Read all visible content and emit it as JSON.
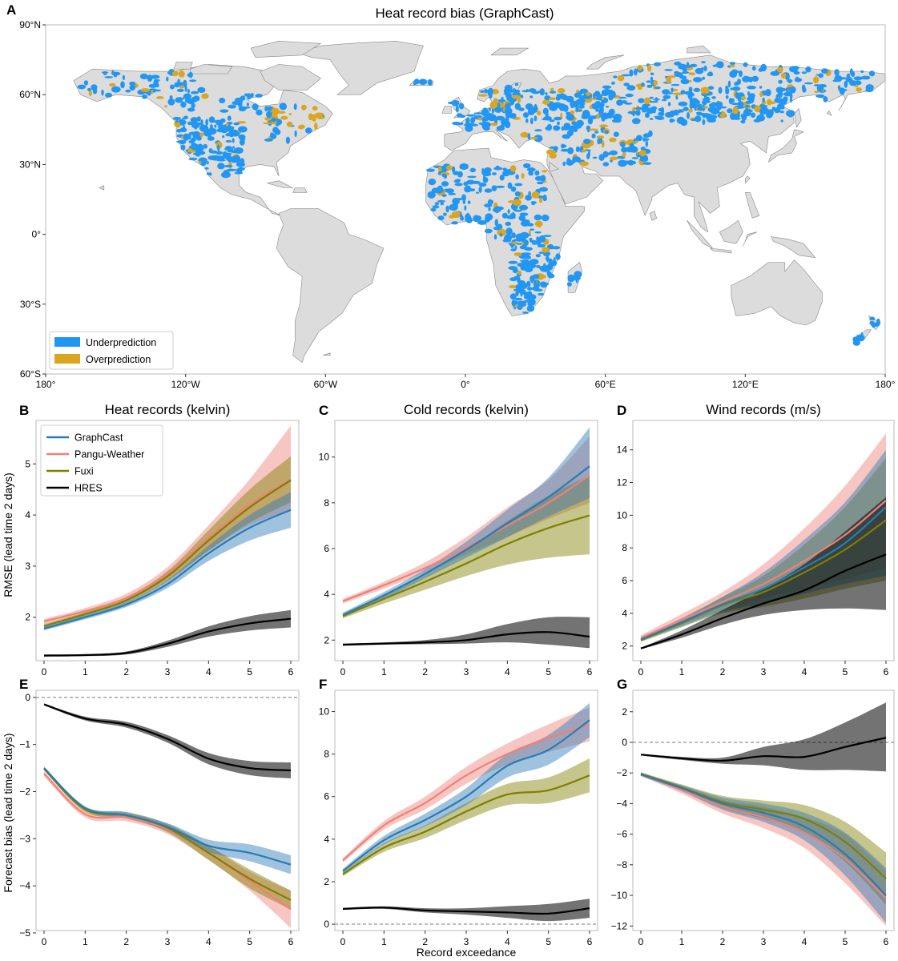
{
  "panel_letters": [
    "A",
    "B",
    "C",
    "D",
    "E",
    "F",
    "G"
  ],
  "map": {
    "title": "Heat record bias (GraphCast)",
    "lat_ticks": [
      "90°N",
      "60°N",
      "30°N",
      "0°",
      "30°S",
      "60°S"
    ],
    "lon_ticks": [
      "180°",
      "120°W",
      "60°W",
      "0°",
      "60°E",
      "120°E",
      "180°"
    ],
    "legend": [
      {
        "label": "Underprediction",
        "color": "#2196f3"
      },
      {
        "label": "Overprediction",
        "color": "#daa520"
      }
    ],
    "land_color": "#dcdcdc",
    "coast_color": "#888888"
  },
  "shared": {
    "ylabel_top": "RMSE (lead time 2 days)",
    "ylabel_bottom": "Forecast bias (lead time 2 days)",
    "xlabel": "Record exceedance",
    "xticks": [
      "0",
      "1",
      "2",
      "3",
      "4",
      "5",
      "6"
    ]
  },
  "colors": {
    "GraphCast": "#2a7ab5",
    "Pangu-Weather": "#f08078",
    "Fuxi": "#7f7f00",
    "HRES": "#000000"
  },
  "chart_data": [
    {
      "id": "B",
      "type": "line",
      "title": "Heat records (kelvin)",
      "x": [
        0,
        1,
        2,
        3,
        4,
        5,
        6
      ],
      "xlim": [
        0,
        6
      ],
      "ylim": [
        1.15,
        5.85
      ],
      "ytick_values": [
        2,
        3,
        4,
        5
      ],
      "ytick_labels": [
        "2",
        "3",
        "4",
        "5"
      ],
      "legend": {
        "position": "top-left",
        "entries": [
          "GraphCast",
          "Pangu-Weather",
          "Fuxi",
          "HRES"
        ]
      },
      "series": [
        {
          "name": "GraphCast",
          "values": [
            1.78,
            2.0,
            2.25,
            2.65,
            3.25,
            3.75,
            4.1
          ],
          "low": [
            1.74,
            1.96,
            2.2,
            2.57,
            3.1,
            3.5,
            3.75
          ],
          "high": [
            1.82,
            2.04,
            2.3,
            2.73,
            3.4,
            4.0,
            4.45
          ]
        },
        {
          "name": "Pangu-Weather",
          "values": [
            1.92,
            2.12,
            2.38,
            2.85,
            3.55,
            4.2,
            4.7
          ],
          "low": [
            1.87,
            2.06,
            2.3,
            2.72,
            3.3,
            3.8,
            4.1
          ],
          "high": [
            1.97,
            2.18,
            2.46,
            2.98,
            3.8,
            4.7,
            5.75
          ]
        },
        {
          "name": "Fuxi",
          "values": [
            1.83,
            2.06,
            2.33,
            2.8,
            3.5,
            4.15,
            4.68
          ],
          "low": [
            1.79,
            2.02,
            2.27,
            2.7,
            3.3,
            3.85,
            4.25
          ],
          "high": [
            1.87,
            2.1,
            2.39,
            2.9,
            3.7,
            4.5,
            5.15
          ]
        },
        {
          "name": "HRES",
          "values": [
            1.25,
            1.26,
            1.3,
            1.48,
            1.72,
            1.88,
            1.97
          ],
          "low": [
            1.23,
            1.24,
            1.27,
            1.42,
            1.62,
            1.74,
            1.8
          ],
          "high": [
            1.27,
            1.28,
            1.33,
            1.54,
            1.82,
            2.02,
            2.14
          ]
        }
      ]
    },
    {
      "id": "C",
      "type": "line",
      "title": "Cold records (kelvin)",
      "x": [
        0,
        1,
        2,
        3,
        4,
        5,
        6
      ],
      "xlim": [
        0,
        6
      ],
      "ylim": [
        1.1,
        11.6
      ],
      "ytick_values": [
        2,
        4,
        6,
        8,
        10
      ],
      "ytick_labels": [
        "2",
        "4",
        "6",
        "8",
        "10"
      ],
      "series": [
        {
          "name": "GraphCast",
          "values": [
            3.1,
            3.95,
            4.9,
            5.95,
            7.1,
            8.25,
            9.6
          ],
          "low": [
            3.0,
            3.8,
            4.7,
            5.6,
            6.5,
            7.4,
            8.2
          ],
          "high": [
            3.2,
            4.1,
            5.1,
            6.3,
            7.7,
            9.1,
            11.3
          ]
        },
        {
          "name": "Pangu-Weather",
          "values": [
            3.7,
            4.4,
            5.15,
            6.05,
            7.0,
            8.0,
            9.2
          ],
          "low": [
            3.6,
            4.25,
            4.95,
            5.75,
            6.5,
            7.3,
            8.0
          ],
          "high": [
            3.8,
            4.55,
            5.4,
            6.5,
            7.8,
            9.0,
            10.9
          ]
        },
        {
          "name": "Fuxi",
          "values": [
            3.05,
            3.8,
            4.55,
            5.35,
            6.2,
            6.9,
            7.45
          ],
          "low": [
            2.95,
            3.6,
            4.2,
            4.8,
            5.3,
            5.6,
            5.75
          ],
          "high": [
            3.15,
            4.0,
            4.9,
            5.95,
            7.2,
            8.3,
            9.2
          ]
        },
        {
          "name": "HRES",
          "values": [
            1.8,
            1.85,
            1.9,
            2.0,
            2.25,
            2.35,
            2.15
          ],
          "low": [
            1.75,
            1.8,
            1.82,
            1.85,
            1.9,
            1.8,
            1.65
          ],
          "high": [
            1.85,
            1.9,
            2.0,
            2.25,
            2.7,
            3.0,
            3.0
          ]
        }
      ]
    },
    {
      "id": "D",
      "type": "line",
      "title": "Wind records (m/s)",
      "x": [
        0,
        1,
        2,
        3,
        4,
        5,
        6
      ],
      "xlim": [
        0,
        6
      ],
      "ylim": [
        1.1,
        15.8
      ],
      "ytick_values": [
        2,
        4,
        6,
        8,
        10,
        12,
        14
      ],
      "ytick_labels": [
        "2",
        "4",
        "6",
        "8",
        "10",
        "12",
        "14"
      ],
      "series": [
        {
          "name": "GraphCast",
          "values": [
            2.4,
            3.45,
            4.55,
            5.5,
            6.8,
            8.3,
            10.5
          ],
          "low": [
            2.3,
            3.2,
            4.1,
            4.6,
            5.2,
            5.8,
            6.3
          ],
          "high": [
            2.5,
            3.7,
            5.0,
            6.5,
            8.5,
            10.8,
            14.0
          ]
        },
        {
          "name": "Pangu-Weather",
          "values": [
            2.5,
            3.6,
            4.7,
            5.8,
            7.2,
            8.8,
            10.9
          ],
          "low": [
            2.35,
            3.3,
            4.2,
            4.9,
            5.5,
            6.1,
            6.8
          ],
          "high": [
            2.65,
            3.95,
            5.3,
            7.0,
            9.2,
            11.8,
            15.0
          ]
        },
        {
          "name": "Fuxi",
          "values": [
            2.35,
            3.4,
            4.5,
            5.3,
            6.5,
            7.9,
            9.7
          ],
          "low": [
            2.25,
            3.15,
            4.0,
            4.4,
            4.9,
            5.5,
            6.0
          ],
          "high": [
            2.45,
            3.65,
            5.0,
            6.3,
            8.2,
            10.5,
            13.5
          ]
        },
        {
          "name": "HRES",
          "values": [
            1.85,
            2.7,
            3.7,
            4.6,
            5.4,
            6.6,
            7.6
          ],
          "low": [
            1.8,
            2.5,
            3.3,
            3.9,
            4.2,
            4.3,
            4.2
          ],
          "high": [
            1.9,
            2.95,
            4.2,
            5.5,
            7.0,
            9.0,
            11.1
          ]
        }
      ]
    },
    {
      "id": "E",
      "type": "line",
      "title": "",
      "x": [
        0,
        1,
        2,
        3,
        4,
        5,
        6
      ],
      "xlim": [
        0,
        6
      ],
      "ylim": [
        -4.95,
        0.15
      ],
      "ytick_values": [
        0,
        -1,
        -2,
        -3,
        -4,
        -5
      ],
      "ytick_labels": [
        "0",
        "−1",
        "−2",
        "−3",
        "−4",
        "−5"
      ],
      "zero_line": true,
      "series": [
        {
          "name": "GraphCast",
          "values": [
            -1.5,
            -2.35,
            -2.5,
            -2.75,
            -3.15,
            -3.3,
            -3.55
          ],
          "low": [
            -1.53,
            -2.39,
            -2.56,
            -2.83,
            -3.28,
            -3.48,
            -3.75
          ],
          "high": [
            -1.47,
            -2.31,
            -2.44,
            -2.67,
            -3.02,
            -3.12,
            -3.35
          ]
        },
        {
          "name": "Pangu-Weather",
          "values": [
            -1.62,
            -2.48,
            -2.55,
            -2.8,
            -3.3,
            -3.9,
            -4.5
          ],
          "low": [
            -1.67,
            -2.55,
            -2.63,
            -2.9,
            -3.45,
            -4.1,
            -4.9
          ],
          "high": [
            -1.57,
            -2.41,
            -2.47,
            -2.7,
            -3.15,
            -3.7,
            -4.1
          ]
        },
        {
          "name": "Fuxi",
          "values": [
            -1.52,
            -2.38,
            -2.5,
            -2.77,
            -3.3,
            -3.85,
            -4.3
          ],
          "low": [
            -1.55,
            -2.43,
            -2.57,
            -2.86,
            -3.45,
            -4.05,
            -4.5
          ],
          "high": [
            -1.49,
            -2.33,
            -2.43,
            -2.68,
            -3.15,
            -3.65,
            -4.1
          ]
        },
        {
          "name": "HRES",
          "values": [
            -0.15,
            -0.45,
            -0.58,
            -0.88,
            -1.3,
            -1.5,
            -1.55
          ],
          "low": [
            -0.17,
            -0.49,
            -0.64,
            -0.96,
            -1.42,
            -1.65,
            -1.72
          ],
          "high": [
            -0.13,
            -0.41,
            -0.52,
            -0.8,
            -1.18,
            -1.35,
            -1.38
          ]
        }
      ]
    },
    {
      "id": "F",
      "type": "line",
      "title": "",
      "x": [
        0,
        1,
        2,
        3,
        4,
        5,
        6
      ],
      "xlim": [
        0,
        6
      ],
      "ylim": [
        -0.3,
        11.0
      ],
      "ytick_values": [
        0,
        2,
        4,
        6,
        8,
        10
      ],
      "ytick_labels": [
        "0",
        "2",
        "4",
        "6",
        "8",
        "10"
      ],
      "zero_line": true,
      "series": [
        {
          "name": "GraphCast",
          "values": [
            2.5,
            3.95,
            4.9,
            6.0,
            7.45,
            8.2,
            9.6
          ],
          "low": [
            2.4,
            3.75,
            4.6,
            5.6,
            6.9,
            7.5,
            8.8
          ],
          "high": [
            2.6,
            4.15,
            5.2,
            6.4,
            8.0,
            8.9,
            10.4
          ]
        },
        {
          "name": "Pangu-Weather",
          "values": [
            3.0,
            4.65,
            5.7,
            7.0,
            8.0,
            8.75,
            9.4
          ],
          "low": [
            2.9,
            4.45,
            5.4,
            6.6,
            7.5,
            8.1,
            8.6
          ],
          "high": [
            3.1,
            4.85,
            6.0,
            7.4,
            8.5,
            9.4,
            10.2
          ]
        },
        {
          "name": "Fuxi",
          "values": [
            2.35,
            3.6,
            4.35,
            5.3,
            6.1,
            6.3,
            7.0
          ],
          "low": [
            2.25,
            3.4,
            4.05,
            4.9,
            5.6,
            5.7,
            6.2
          ],
          "high": [
            2.45,
            3.8,
            4.65,
            5.7,
            6.6,
            6.9,
            7.8
          ]
        },
        {
          "name": "HRES",
          "values": [
            0.72,
            0.78,
            0.65,
            0.6,
            0.55,
            0.5,
            0.75
          ],
          "low": [
            0.67,
            0.72,
            0.55,
            0.45,
            0.3,
            0.15,
            0.3
          ],
          "high": [
            0.77,
            0.84,
            0.75,
            0.75,
            0.85,
            0.95,
            1.2
          ]
        }
      ]
    },
    {
      "id": "G",
      "type": "line",
      "title": "",
      "x": [
        0,
        1,
        2,
        3,
        4,
        5,
        6
      ],
      "xlim": [
        0,
        6
      ],
      "ylim": [
        -12.3,
        3.4
      ],
      "ytick_values": [
        2,
        0,
        -2,
        -4,
        -6,
        -8,
        -10,
        -12
      ],
      "ytick_labels": [
        "2",
        "0",
        "−2",
        "−4",
        "−6",
        "−8",
        "−10",
        "−12"
      ],
      "zero_line": true,
      "series": [
        {
          "name": "GraphCast",
          "values": [
            -2.1,
            -3.0,
            -4.0,
            -4.6,
            -5.5,
            -7.3,
            -10.0
          ],
          "low": [
            -2.2,
            -3.2,
            -4.4,
            -5.2,
            -6.4,
            -8.7,
            -11.8
          ],
          "high": [
            -2.0,
            -2.8,
            -3.6,
            -4.0,
            -4.6,
            -5.9,
            -8.2
          ]
        },
        {
          "name": "Pangu-Weather",
          "values": [
            -2.1,
            -3.1,
            -4.2,
            -4.9,
            -5.9,
            -7.6,
            -10.2
          ],
          "low": [
            -2.2,
            -3.35,
            -4.65,
            -5.6,
            -6.9,
            -9.2,
            -12.0
          ],
          "high": [
            -2.0,
            -2.85,
            -3.75,
            -4.2,
            -4.9,
            -6.0,
            -8.4
          ]
        },
        {
          "name": "Fuxi",
          "values": [
            -2.05,
            -2.95,
            -3.9,
            -4.4,
            -5.0,
            -6.5,
            -8.9
          ],
          "low": [
            -2.15,
            -3.15,
            -4.3,
            -5.0,
            -5.9,
            -7.8,
            -10.6
          ],
          "high": [
            -1.95,
            -2.75,
            -3.5,
            -3.8,
            -4.1,
            -5.2,
            -7.2
          ]
        },
        {
          "name": "HRES",
          "values": [
            -0.8,
            -1.05,
            -1.2,
            -0.9,
            -0.95,
            -0.3,
            0.3
          ],
          "low": [
            -0.85,
            -1.15,
            -1.4,
            -1.5,
            -1.8,
            -1.8,
            -1.9
          ],
          "high": [
            -0.75,
            -0.95,
            -1.0,
            -0.3,
            0.2,
            1.3,
            2.6
          ]
        }
      ]
    }
  ]
}
